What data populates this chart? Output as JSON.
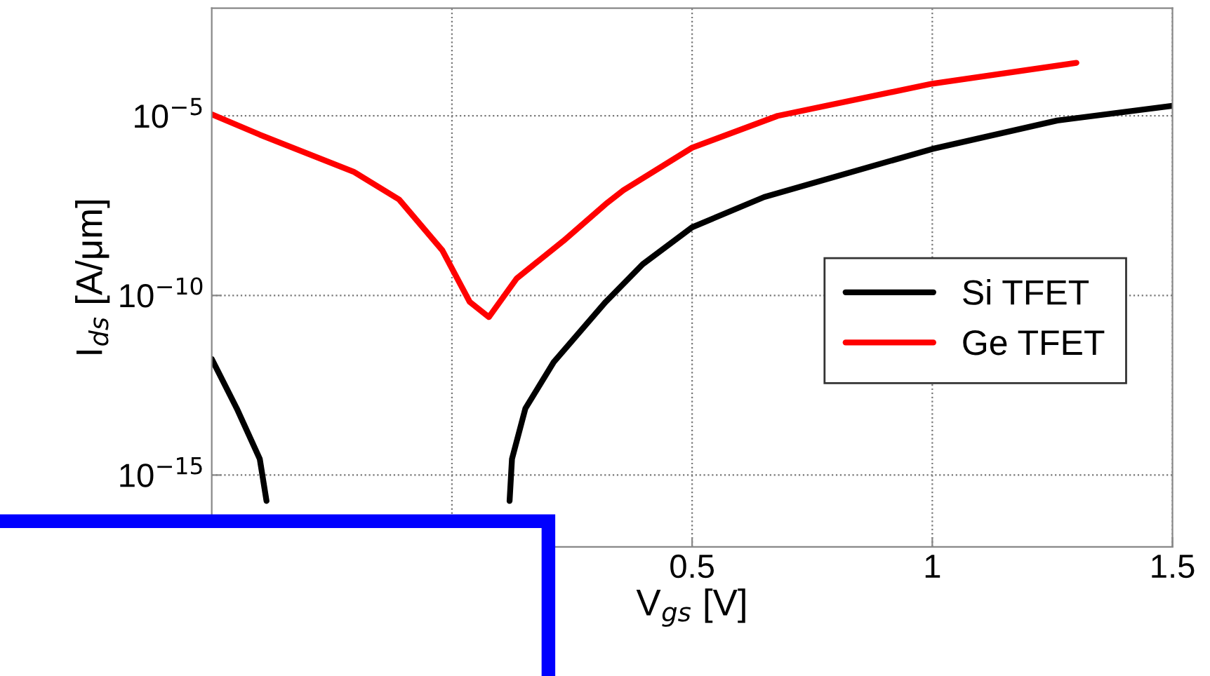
{
  "chart_data": {
    "type": "line",
    "xlabel": "V$_{gs}$ [V]",
    "ylabel": "I$_{ds}$ [A/μm]",
    "log": "y",
    "grid": true,
    "legend": "right",
    "line_style": "solid",
    "marker": "none",
    "xlim": [
      -0.5,
      1.5
    ],
    "xticks": [
      {
        "value": 0,
        "label": null
      },
      0.5,
      1,
      1.5
    ],
    "ylim": [
      1e-17,
      0.01
    ],
    "yticks": [
      {
        "value": 1e-15,
        "label": "10$^{−15}$"
      },
      {
        "value": 1e-10,
        "label": "10$^{−10}$"
      },
      {
        "value": 1e-05,
        "label": "10$^{−5}$"
      }
    ],
    "series": [
      {
        "name": "Si TFET",
        "color": "#000000",
        "x": [
          -0.5,
          -0.448,
          -0.4,
          -0.386,
          null,
          0.12,
          0.125,
          0.153,
          0.212,
          0.32,
          0.397,
          0.5,
          0.65,
          1.0,
          1.26,
          1.5
        ],
        "values": [
          1.7e-12,
          7.2e-14,
          2.8e-15,
          1.9e-16,
          null,
          1.9e-16,
          2.8e-15,
          7.2e-14,
          1.4e-12,
          6.6e-11,
          7.4e-10,
          7.9e-09,
          5.5e-08,
          1.2e-06,
          7.4e-06,
          1.9e-05
        ]
      },
      {
        "name": "Ge TFET",
        "color": "#ff0000",
        "x": [
          -0.5,
          -0.4,
          -0.205,
          -0.11,
          -0.02,
          0.037,
          0.077,
          0.135,
          0.232,
          0.32,
          0.357,
          0.5,
          0.678,
          1.0,
          1.3
        ],
        "values": [
          1.1e-05,
          3e-06,
          2.8e-07,
          4.7e-08,
          1.8e-09,
          6.6e-11,
          2.5e-11,
          3e-10,
          3.3e-09,
          3.5e-08,
          8.5e-08,
          1.3e-06,
          1e-05,
          7.9e-05,
          0.0003
        ]
      }
    ]
  }
}
